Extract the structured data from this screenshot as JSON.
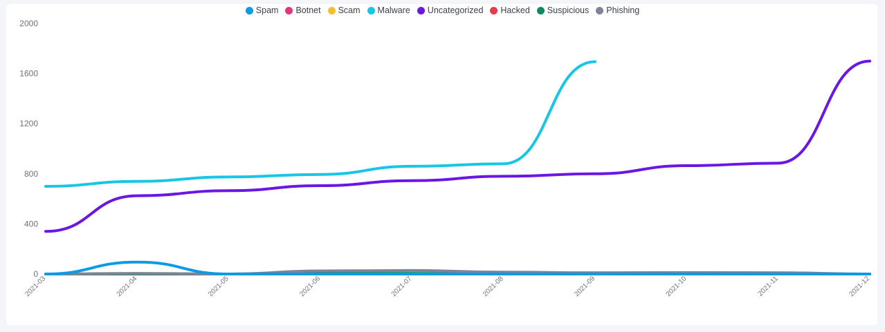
{
  "chart_data": {
    "type": "line",
    "title": "",
    "xlabel": "",
    "ylabel": "",
    "ylim": [
      0,
      2000
    ],
    "yticks": [
      "0",
      "400",
      "800",
      "1200",
      "1600",
      "2000"
    ],
    "categories": [
      "2021-03",
      "2021-04",
      "2021-05",
      "2021-06",
      "2021-07",
      "2021-08",
      "2021-09",
      "2021-10",
      "2021-11",
      "2021-12"
    ],
    "legend_position": "top",
    "grid": false,
    "series": [
      {
        "name": "Spam",
        "color": "#0a9be8",
        "values": [
          0,
          95,
          0,
          0,
          0,
          0,
          0,
          0,
          0,
          0
        ]
      },
      {
        "name": "Botnet",
        "color": "#e0367f",
        "values": [
          0,
          0,
          0,
          0,
          0,
          0,
          0,
          0,
          0,
          0
        ]
      },
      {
        "name": "Scam",
        "color": "#f4bf2e",
        "values": [
          0,
          0,
          0,
          0,
          0,
          0,
          0,
          0,
          0,
          0
        ]
      },
      {
        "name": "Malware",
        "color": "#17c6e6",
        "values": [
          700,
          740,
          775,
          795,
          860,
          880,
          1695,
          null,
          null,
          null
        ]
      },
      {
        "name": "Uncategorized",
        "color": "#6a16e5",
        "values": [
          340,
          625,
          665,
          705,
          745,
          780,
          800,
          865,
          885,
          1700
        ]
      },
      {
        "name": "Hacked",
        "color": "#e83a4b",
        "values": [
          0,
          0,
          0,
          0,
          0,
          0,
          0,
          0,
          0,
          0
        ]
      },
      {
        "name": "Suspicious",
        "color": "#0f8a5f",
        "values": [
          0,
          0,
          0,
          5,
          5,
          0,
          0,
          0,
          0,
          0
        ]
      },
      {
        "name": "Phishing",
        "color": "#808296",
        "values": [
          0,
          5,
          0,
          25,
          28,
          15,
          10,
          12,
          10,
          0
        ]
      }
    ]
  }
}
